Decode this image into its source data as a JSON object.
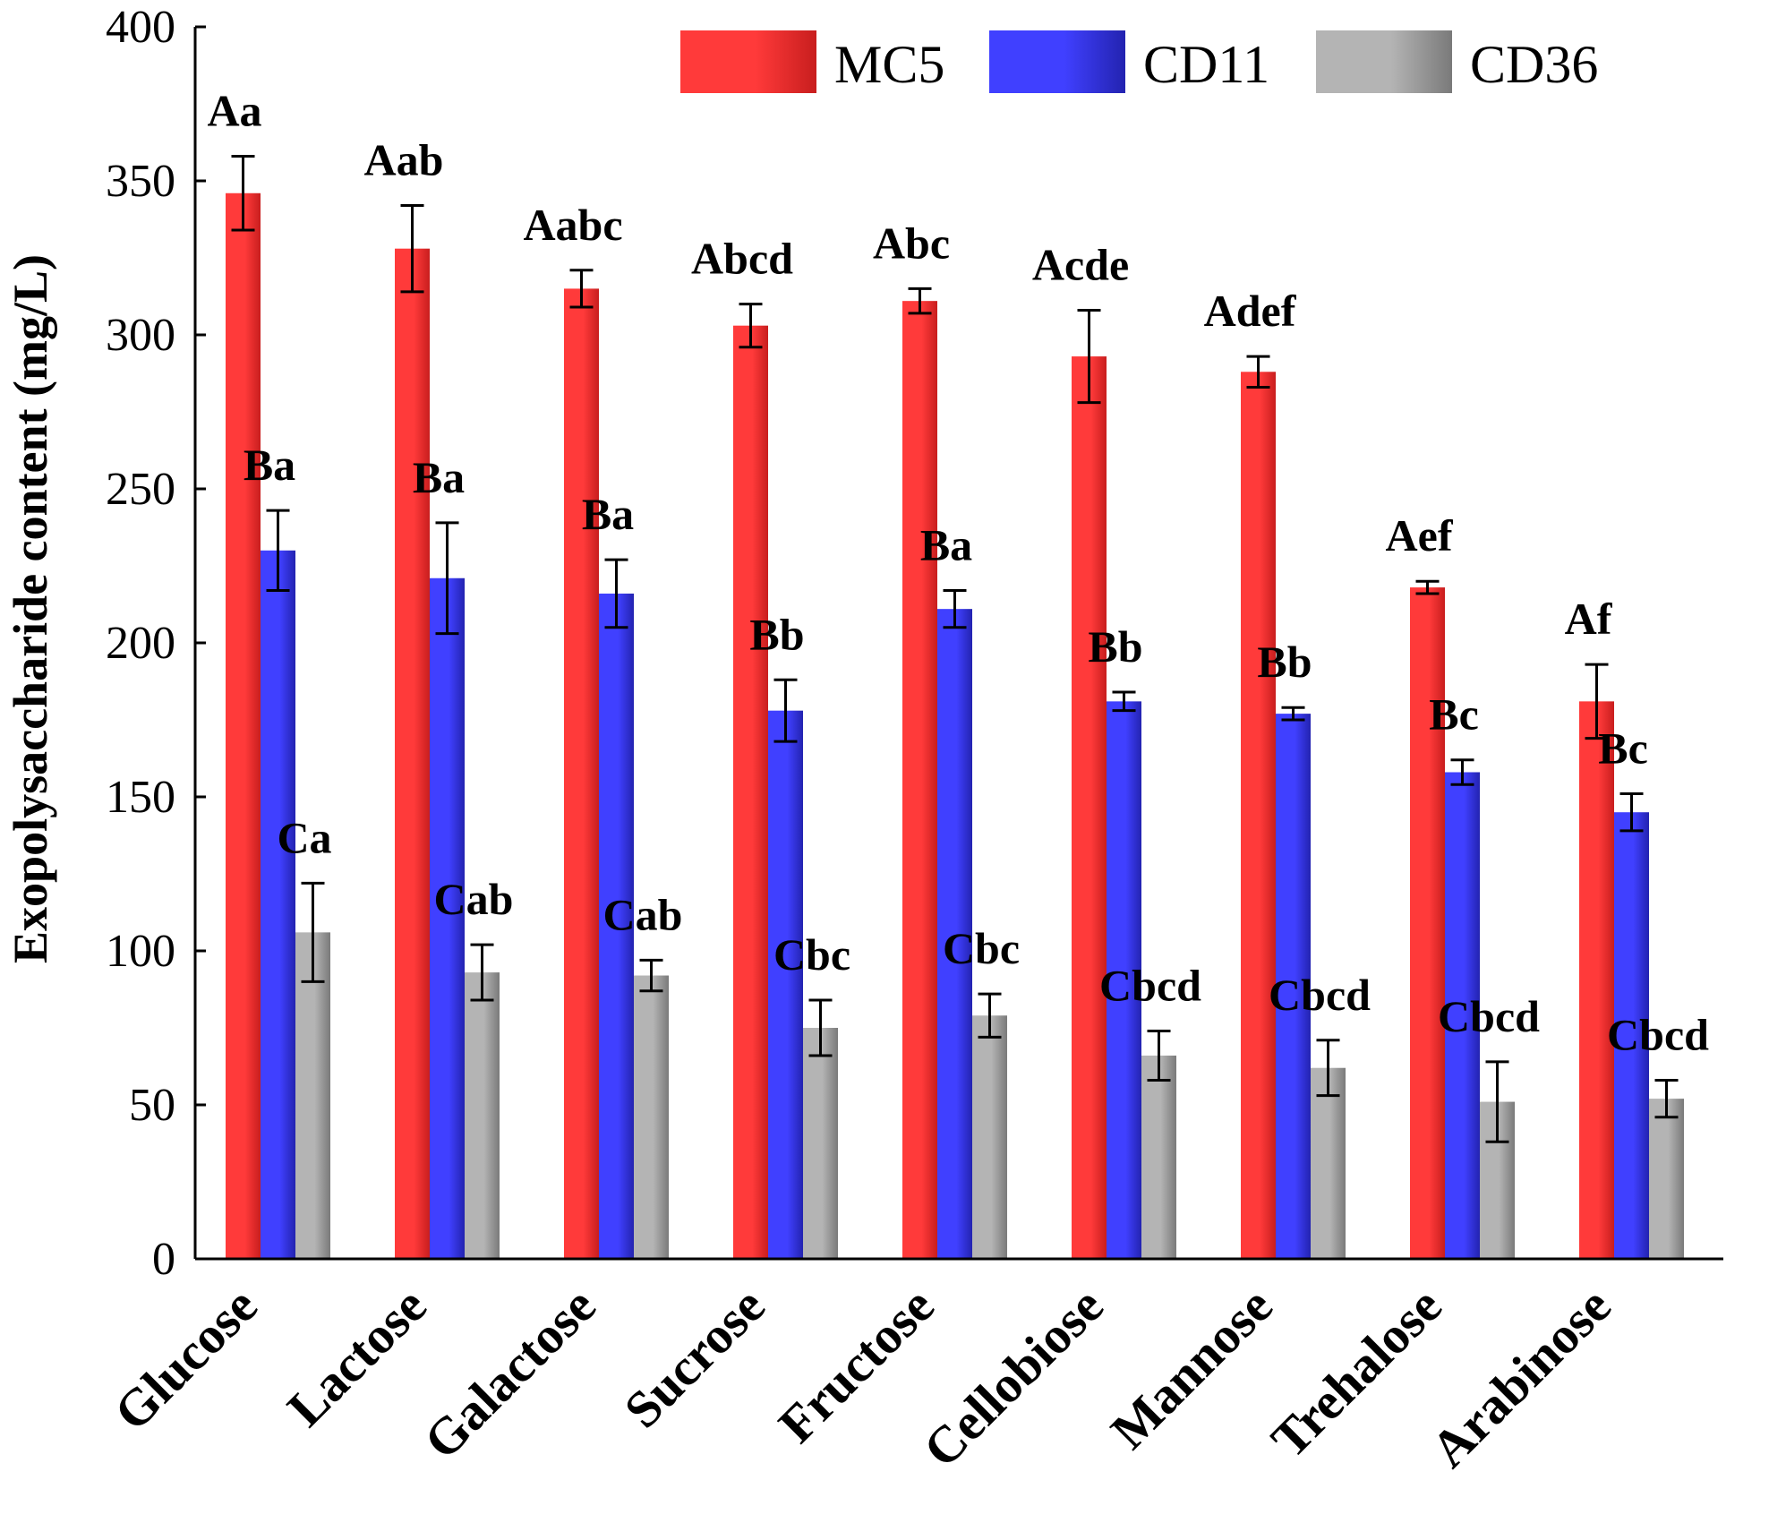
{
  "chart_data": {
    "type": "bar",
    "title": "",
    "xlabel": "",
    "ylabel": "Exopolysaccharide content (mg/L)",
    "ylim": [
      0,
      400
    ],
    "yticks": [
      0,
      50,
      100,
      150,
      200,
      250,
      300,
      350,
      400
    ],
    "categories": [
      "Glucose",
      "Lactose",
      "Galactose",
      "Sucrose",
      "Fructose",
      "Cellobiose",
      "Mannose",
      "Trehalose",
      "Arabinose"
    ],
    "series": [
      {
        "name": "MC5",
        "color_light": "#ff3a3a",
        "color_dark": "#c81e1e",
        "values": [
          346,
          328,
          315,
          303,
          311,
          293,
          288,
          218,
          181
        ],
        "errors": [
          12,
          14,
          6,
          7,
          4,
          15,
          5,
          2,
          12
        ],
        "labels": [
          "Aa",
          "Aab",
          "Aabc",
          "Abcd",
          "Abc",
          "Acde",
          "Adef",
          "Aef",
          "Af"
        ]
      },
      {
        "name": "CD11",
        "color_light": "#4040ff",
        "color_dark": "#2323b0",
        "values": [
          230,
          221,
          216,
          178,
          211,
          181,
          177,
          158,
          145
        ],
        "errors": [
          13,
          18,
          11,
          10,
          6,
          3,
          2,
          4,
          6
        ],
        "labels": [
          "Ba",
          "Ba",
          "Ba",
          "Bb",
          "Ba",
          "Bb",
          "Bb",
          "Bc",
          "Bc"
        ]
      },
      {
        "name": "CD36",
        "color_light": "#b4b4b4",
        "color_dark": "#7a7a7a",
        "values": [
          106,
          93,
          92,
          75,
          79,
          66,
          62,
          51,
          52
        ],
        "errors": [
          16,
          9,
          5,
          9,
          7,
          8,
          9,
          13,
          6
        ],
        "labels": [
          "Ca",
          "Cab",
          "Cab",
          "Cbc",
          "Cbc",
          "Cbcd",
          "Cbcd",
          "Cbcd",
          "Cbcd"
        ]
      }
    ],
    "legend_position": "top-right",
    "grid": false
  }
}
